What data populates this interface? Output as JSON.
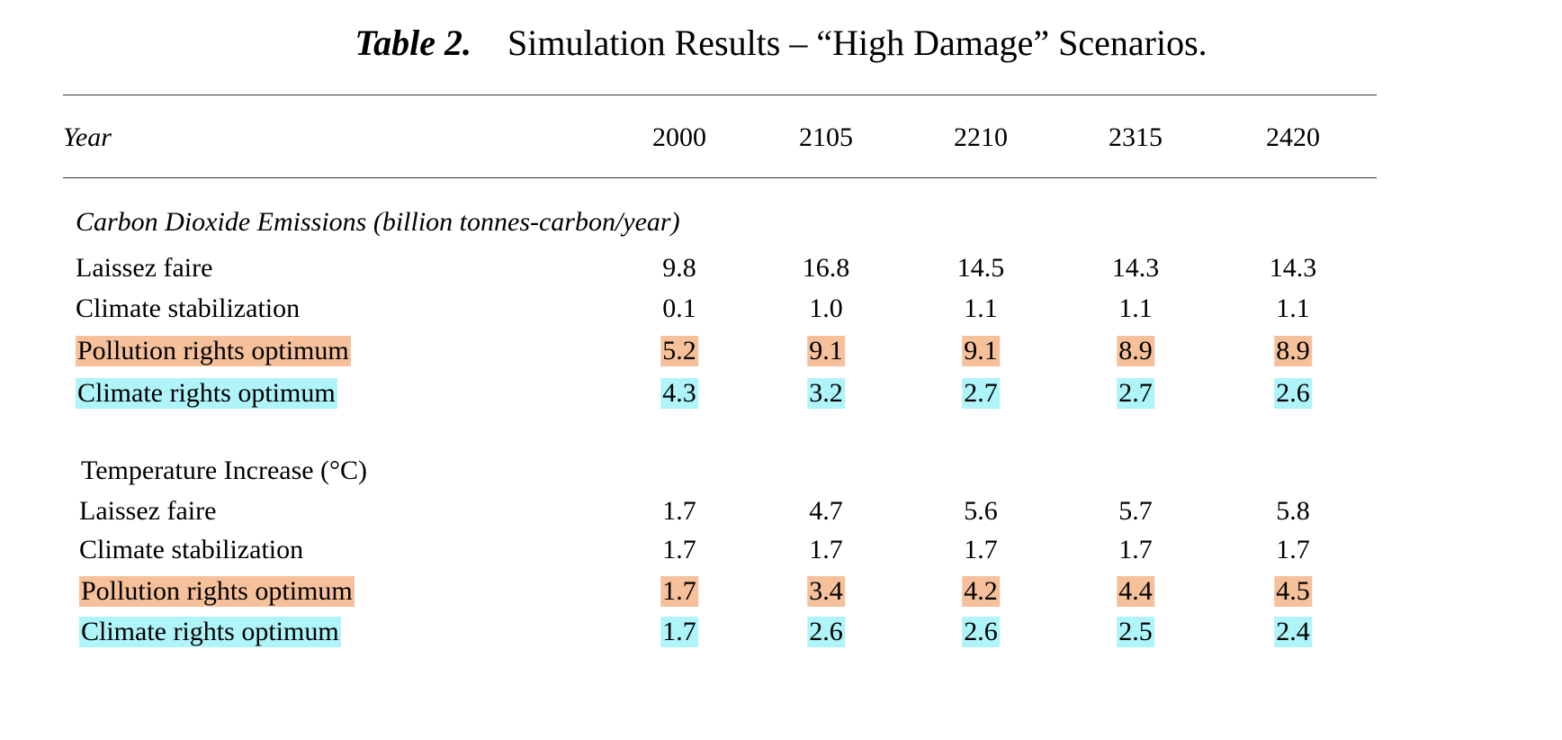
{
  "title": {
    "label": "Table 2.",
    "text": "Simulation Results – “High Damage” Scenarios."
  },
  "header": {
    "first": "Year",
    "years": [
      "2000",
      "2105",
      "2210",
      "2315",
      "2420"
    ]
  },
  "sections": [
    {
      "title": "Carbon Dioxide Emissions (billion tonnes-carbon/year)",
      "rows": [
        {
          "label": "Laissez faire",
          "values": [
            "9.8",
            "16.8",
            "14.5",
            "14.3",
            "14.3"
          ]
        },
        {
          "label": "Climate stabilization",
          "values": [
            "0.1",
            "1.0",
            "1.1",
            "1.1",
            "1.1"
          ]
        },
        {
          "label": "Pollution rights optimum",
          "values": [
            "5.2",
            "9.1",
            "9.1",
            "8.9",
            "8.9"
          ]
        },
        {
          "label": "Climate rights optimum",
          "values": [
            "4.3",
            "3.2",
            "2.7",
            "2.7",
            "2.6"
          ]
        }
      ]
    },
    {
      "title": "Temperature Increase (°C)",
      "rows": [
        {
          "label": "Laissez faire",
          "values": [
            "1.7",
            "4.7",
            "5.6",
            "5.7",
            "5.8"
          ]
        },
        {
          "label": "Climate stabilization",
          "values": [
            "1.7",
            "1.7",
            "1.7",
            "1.7",
            "1.7"
          ]
        },
        {
          "label": "Pollution rights optimum",
          "values": [
            "1.7",
            "3.4",
            "4.2",
            "4.4",
            "4.5"
          ]
        },
        {
          "label": "Climate rights optimum",
          "values": [
            "1.7",
            "2.6",
            "2.6",
            "2.5",
            "2.4"
          ]
        }
      ]
    }
  ],
  "highlight_colors": {
    "pollution_rights": "#f5c09a",
    "climate_rights": "#aef4f9"
  }
}
